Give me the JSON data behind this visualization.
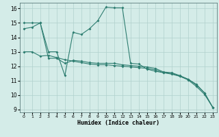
{
  "xlabel": "Humidex (Indice chaleur)",
  "xlim": [
    -0.5,
    23.5
  ],
  "ylim": [
    8.8,
    16.4
  ],
  "yticks": [
    9,
    10,
    11,
    12,
    13,
    14,
    15,
    16
  ],
  "xticks": [
    0,
    1,
    2,
    3,
    4,
    5,
    6,
    7,
    8,
    9,
    10,
    11,
    12,
    13,
    14,
    15,
    16,
    17,
    18,
    19,
    20,
    21,
    22,
    23
  ],
  "background_color": "#d4ece8",
  "grid_color": "#b0d0cc",
  "line_color": "#2d7d70",
  "line1_x": [
    0,
    1,
    2,
    3,
    4,
    5,
    6,
    7,
    8,
    9,
    10,
    11,
    12,
    13,
    14,
    15,
    16,
    17,
    18,
    19,
    20,
    21,
    22,
    23
  ],
  "line1_y": [
    14.6,
    14.7,
    15.0,
    13.0,
    13.0,
    11.35,
    14.35,
    14.2,
    14.6,
    15.15,
    16.1,
    16.05,
    16.05,
    12.2,
    12.15,
    11.8,
    11.65,
    11.55,
    11.45,
    11.3,
    11.1,
    10.75,
    10.15,
    9.15
  ],
  "line2_x": [
    0,
    1,
    2,
    3,
    4,
    5,
    6,
    7,
    8,
    9,
    10,
    11,
    12,
    13,
    14,
    15,
    16,
    17,
    18,
    19,
    20,
    21,
    22,
    23
  ],
  "line2_y": [
    13.0,
    13.0,
    12.7,
    12.75,
    12.6,
    12.45,
    12.35,
    12.25,
    12.15,
    12.1,
    12.1,
    12.05,
    12.0,
    11.95,
    11.9,
    11.85,
    11.75,
    11.55,
    11.5,
    11.3,
    11.05,
    10.6,
    10.05,
    9.15
  ],
  "line3_x": [
    0,
    1,
    2,
    3,
    4,
    5,
    6,
    7,
    8,
    9,
    10,
    11,
    12,
    13,
    14,
    15,
    16,
    17,
    18,
    19,
    20,
    21,
    22,
    23
  ],
  "line3_y": [
    15.0,
    15.0,
    15.0,
    12.55,
    12.55,
    12.2,
    12.4,
    12.35,
    12.25,
    12.2,
    12.2,
    12.2,
    12.1,
    12.05,
    12.0,
    11.95,
    11.85,
    11.6,
    11.55,
    11.35,
    11.1,
    10.7,
    10.15,
    9.15
  ]
}
